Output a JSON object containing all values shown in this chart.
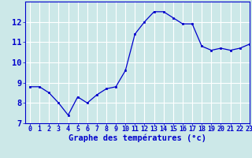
{
  "x": [
    0,
    1,
    2,
    3,
    4,
    5,
    6,
    7,
    8,
    9,
    10,
    11,
    12,
    13,
    14,
    15,
    16,
    17,
    18,
    19,
    20,
    21,
    22,
    23
  ],
  "y": [
    8.8,
    8.8,
    8.5,
    8.0,
    7.4,
    8.3,
    8.0,
    8.4,
    8.7,
    8.8,
    9.6,
    11.4,
    12.0,
    12.5,
    12.5,
    12.2,
    11.9,
    11.9,
    10.8,
    10.6,
    10.7,
    10.6,
    10.7,
    10.9
  ],
  "xlabel": "Graphe des températures (°c)",
  "ylim": [
    7,
    13
  ],
  "xlim": [
    -0.5,
    23
  ],
  "yticks": [
    7,
    8,
    9,
    10,
    11,
    12
  ],
  "xticks": [
    0,
    1,
    2,
    3,
    4,
    5,
    6,
    7,
    8,
    9,
    10,
    11,
    12,
    13,
    14,
    15,
    16,
    17,
    18,
    19,
    20,
    21,
    22,
    23
  ],
  "line_color": "#0000cc",
  "marker": "s",
  "marker_size": 2.0,
  "bg_color": "#cce8e8",
  "grid_color": "#ffffff",
  "axis_label_color": "#0000cc",
  "tick_label_color": "#0000cc",
  "xlabel_fontsize": 7.5,
  "tick_fontsize": 6.0,
  "ytick_fontsize": 7.5
}
